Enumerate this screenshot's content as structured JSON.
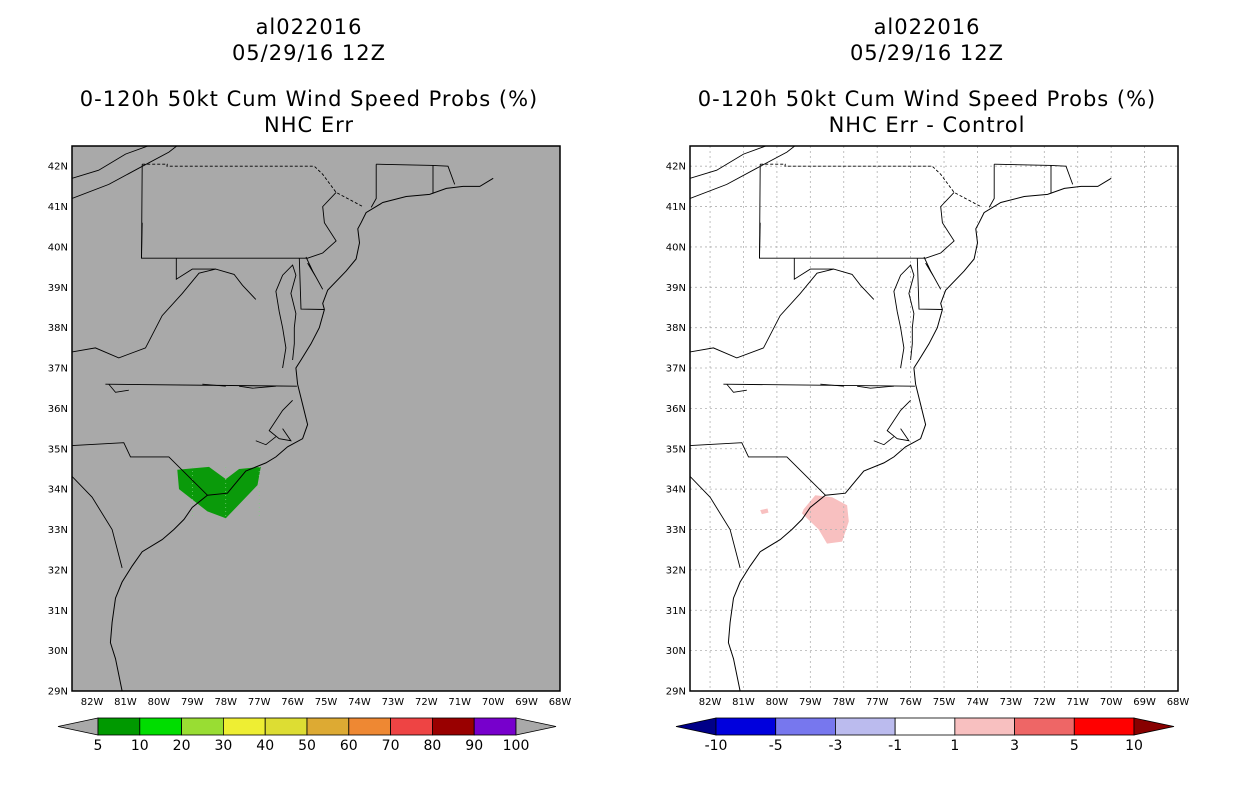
{
  "panels": [
    {
      "id": "left",
      "title_lines": [
        "al022016",
        "05/29/16 12Z",
        "0-120h 50kt Cum Wind Speed Probs (%)",
        "NHC Err"
      ],
      "background": "#a9a9a9",
      "show_grid": false,
      "contours": [
        {
          "name": "prob-5-10",
          "color": "#0a9a0a",
          "points": [
            [
              -79.45,
              34.48
            ],
            [
              -78.5,
              34.55
            ],
            [
              -78.0,
              34.25
            ],
            [
              -77.6,
              34.5
            ],
            [
              -76.95,
              34.55
            ],
            [
              -77.05,
              34.1
            ],
            [
              -77.8,
              33.45
            ],
            [
              -78.0,
              33.28
            ],
            [
              -78.55,
              33.45
            ],
            [
              -79.4,
              34.0
            ],
            [
              -79.45,
              34.48
            ]
          ]
        }
      ],
      "colorbar": {
        "ticks": [
          "5",
          "10",
          "20",
          "30",
          "40",
          "50",
          "60",
          "70",
          "80",
          "90",
          "100"
        ],
        "colors": [
          "#009900",
          "#00dd00",
          "#99dd33",
          "#eeee33",
          "#dddd33",
          "#ddaa33",
          "#ee8833",
          "#ee4444",
          "#990000",
          "#7700cc"
        ],
        "end_low": "#a9a9a9",
        "end_high": "#a9a9a9"
      }
    },
    {
      "id": "right",
      "title_lines": [
        "al022016",
        "05/29/16 12Z",
        "0-120h 50kt Cum Wind Speed Probs (%)",
        "NHC Err - Control"
      ],
      "background": "#ffffff",
      "show_grid": true,
      "contours": [
        {
          "name": "diff-1-3-main",
          "color": "#f8c0c0",
          "points": [
            [
              -79.2,
              33.5
            ],
            [
              -78.85,
              33.85
            ],
            [
              -78.35,
              33.8
            ],
            [
              -77.9,
              33.6
            ],
            [
              -77.85,
              33.2
            ],
            [
              -78.05,
              32.7
            ],
            [
              -78.5,
              32.65
            ],
            [
              -78.75,
              33.0
            ],
            [
              -79.25,
              33.4
            ],
            [
              -79.2,
              33.5
            ]
          ]
        },
        {
          "name": "diff-1-3-spot",
          "color": "#f8c0c0",
          "points": [
            [
              -80.5,
              33.48
            ],
            [
              -80.28,
              33.52
            ],
            [
              -80.25,
              33.42
            ],
            [
              -80.45,
              33.38
            ],
            [
              -80.5,
              33.48
            ]
          ]
        }
      ],
      "colorbar": {
        "ticks": [
          "-10",
          "-5",
          "-3",
          "-1",
          "1",
          "3",
          "5",
          "10"
        ],
        "colors": [
          "#0000dd",
          "#7777ee",
          "#bbbbee",
          "#ffffff",
          "#f8c0c0",
          "#ee6666",
          "#ff0000"
        ],
        "end_low": "#000088",
        "end_high": "#880000"
      }
    }
  ],
  "axes": {
    "lat_labels": [
      "42N",
      "41N",
      "40N",
      "39N",
      "38N",
      "37N",
      "36N",
      "35N",
      "34N",
      "33N",
      "32N",
      "31N",
      "30N",
      "29N"
    ],
    "lon_labels": [
      "82W",
      "81W",
      "80W",
      "79W",
      "78W",
      "77W",
      "76W",
      "75W",
      "74W",
      "73W",
      "72W",
      "71W",
      "70W",
      "69W",
      "68W"
    ],
    "lat_values": [
      42,
      41,
      40,
      39,
      38,
      37,
      36,
      35,
      34,
      33,
      32,
      31,
      30,
      29
    ],
    "lon_values": [
      -82,
      -81,
      -80,
      -79,
      -78,
      -77,
      -76,
      -75,
      -74,
      -73,
      -72,
      -71,
      -70,
      -69,
      -68
    ],
    "lon_range": [
      -82.6,
      -68
    ],
    "lat_range": [
      29,
      42.5
    ]
  },
  "geography": {
    "coastline": [
      [
        -70.0,
        41.7
      ],
      [
        -70.4,
        41.5
      ],
      [
        -70.9,
        41.5
      ],
      [
        -71.4,
        41.45
      ],
      [
        -71.9,
        41.3
      ],
      [
        -72.6,
        41.25
      ],
      [
        -73.3,
        41.1
      ],
      [
        -73.8,
        40.85
      ],
      [
        -73.95,
        40.6
      ],
      [
        -74.05,
        40.45
      ],
      [
        -74.0,
        40.1
      ],
      [
        -74.1,
        39.7
      ],
      [
        -74.4,
        39.4
      ],
      [
        -74.95,
        38.93
      ],
      [
        -75.1,
        38.6
      ],
      [
        -75.05,
        38.45
      ],
      [
        -75.2,
        38.0
      ],
      [
        -75.45,
        37.6
      ],
      [
        -75.75,
        37.2
      ],
      [
        -75.9,
        37.0
      ],
      [
        -75.85,
        36.6
      ],
      [
        -75.7,
        36.1
      ],
      [
        -75.55,
        35.6
      ],
      [
        -75.7,
        35.25
      ],
      [
        -76.15,
        35.05
      ],
      [
        -76.5,
        34.8
      ],
      [
        -76.8,
        34.65
      ],
      [
        -77.4,
        34.45
      ],
      [
        -77.75,
        34.1
      ],
      [
        -77.95,
        33.9
      ],
      [
        -78.55,
        33.85
      ],
      [
        -79.0,
        33.55
      ],
      [
        -79.25,
        33.25
      ],
      [
        -79.55,
        33.0
      ],
      [
        -79.9,
        32.75
      ],
      [
        -80.5,
        32.45
      ],
      [
        -80.8,
        32.1
      ],
      [
        -81.1,
        31.7
      ],
      [
        -81.3,
        31.3
      ],
      [
        -81.4,
        30.7
      ],
      [
        -81.45,
        30.2
      ],
      [
        -81.3,
        29.8
      ],
      [
        -81.1,
        29.0
      ]
    ],
    "innerBays": [
      [
        [
          -76.3,
          37.0
        ],
        [
          -76.2,
          37.5
        ],
        [
          -76.3,
          38.0
        ],
        [
          -76.4,
          38.4
        ],
        [
          -76.5,
          38.9
        ],
        [
          -76.3,
          39.3
        ],
        [
          -76.0,
          39.55
        ],
        [
          -75.9,
          39.3
        ],
        [
          -76.05,
          38.85
        ],
        [
          -75.9,
          38.35
        ],
        [
          -75.95,
          38.0
        ],
        [
          -75.95,
          37.6
        ],
        [
          -76.0,
          37.2
        ]
      ],
      [
        [
          -75.55,
          39.6
        ],
        [
          -75.3,
          39.25
        ],
        [
          -75.1,
          38.95
        ],
        [
          -75.4,
          39.4
        ],
        [
          -75.6,
          39.75
        ]
      ],
      [
        [
          -76.3,
          35.5
        ],
        [
          -76.05,
          35.2
        ],
        [
          -76.4,
          35.25
        ],
        [
          -76.7,
          35.45
        ],
        [
          -76.3,
          35.95
        ],
        [
          -76.0,
          36.2
        ]
      ]
    ],
    "states": [
      [
        [
          -80.5,
          42.05
        ],
        [
          -79.75,
          42.05
        ],
        [
          -79.76,
          42.0
        ],
        [
          -75.35,
          42.0
        ],
        [
          -75.1,
          41.8
        ],
        [
          -74.7,
          41.35
        ],
        [
          -73.9,
          41.0
        ]
      ],
      [
        [
          -80.5,
          42.05
        ],
        [
          -80.52,
          39.72
        ],
        [
          -75.8,
          39.72
        ]
      ],
      [
        [
          -75.8,
          39.72
        ],
        [
          -75.75,
          38.46
        ],
        [
          -75.05,
          38.45
        ]
      ],
      [
        [
          -75.8,
          39.72
        ],
        [
          -75.55,
          39.72
        ],
        [
          -75.1,
          39.85
        ],
        [
          -74.7,
          40.15
        ],
        [
          -75.05,
          40.6
        ],
        [
          -75.1,
          41.0
        ],
        [
          -74.7,
          41.35
        ]
      ],
      [
        [
          -73.5,
          42.05
        ],
        [
          -73.5,
          41.2
        ],
        [
          -73.65,
          40.98
        ]
      ],
      [
        [
          -73.5,
          42.05
        ],
        [
          -71.8,
          42.02
        ],
        [
          -71.8,
          41.32
        ]
      ],
      [
        [
          -71.8,
          42.02
        ],
        [
          -71.35,
          42.0
        ],
        [
          -71.15,
          41.55
        ]
      ],
      [
        [
          -81.6,
          36.6
        ],
        [
          -75.87,
          36.55
        ]
      ],
      [
        [
          -84.3,
          35.0
        ],
        [
          -81.05,
          35.15
        ],
        [
          -80.85,
          34.8
        ],
        [
          -79.7,
          34.8
        ],
        [
          -78.55,
          33.85
        ]
      ],
      [
        [
          -83.4,
          35.0
        ],
        [
          -82.0,
          33.8
        ],
        [
          -81.4,
          33.0
        ],
        [
          -81.1,
          32.05
        ]
      ],
      [
        [
          -82.6,
          37.4
        ],
        [
          -81.9,
          37.5
        ],
        [
          -81.2,
          37.25
        ],
        [
          -80.4,
          37.5
        ],
        [
          -79.9,
          38.3
        ],
        [
          -79.3,
          38.85
        ],
        [
          -78.8,
          39.35
        ],
        [
          -78.3,
          39.45
        ],
        [
          -77.75,
          39.32
        ],
        [
          -77.5,
          39.05
        ],
        [
          -77.1,
          38.7
        ]
      ],
      [
        [
          -80.52,
          39.72
        ],
        [
          -80.5,
          40.6
        ]
      ],
      [
        [
          -79.48,
          39.72
        ],
        [
          -79.48,
          39.2
        ],
        [
          -79.0,
          39.45
        ],
        [
          -78.3,
          39.45
        ]
      ]
    ],
    "lakes": [
      [
        [
          -82.6,
          41.2
        ],
        [
          -81.5,
          41.55
        ],
        [
          -80.6,
          41.95
        ],
        [
          -79.7,
          42.35
        ],
        [
          -79.0,
          42.8
        ]
      ],
      [
        [
          -82.6,
          41.7
        ],
        [
          -81.8,
          41.9
        ],
        [
          -81.0,
          42.3
        ],
        [
          -80.0,
          42.6
        ]
      ]
    ],
    "rivers": [
      [
        [
          -81.5,
          36.6
        ],
        [
          -81.3,
          36.4
        ],
        [
          -80.9,
          36.45
        ]
      ],
      [
        [
          -77.6,
          36.55
        ],
        [
          -77.2,
          36.5
        ],
        [
          -76.5,
          36.55
        ]
      ],
      [
        [
          -78.7,
          36.6
        ],
        [
          -78.4,
          36.58
        ],
        [
          -78.0,
          36.55
        ]
      ],
      [
        [
          -76.5,
          35.3
        ],
        [
          -76.8,
          35.1
        ],
        [
          -77.1,
          35.2
        ]
      ]
    ]
  }
}
